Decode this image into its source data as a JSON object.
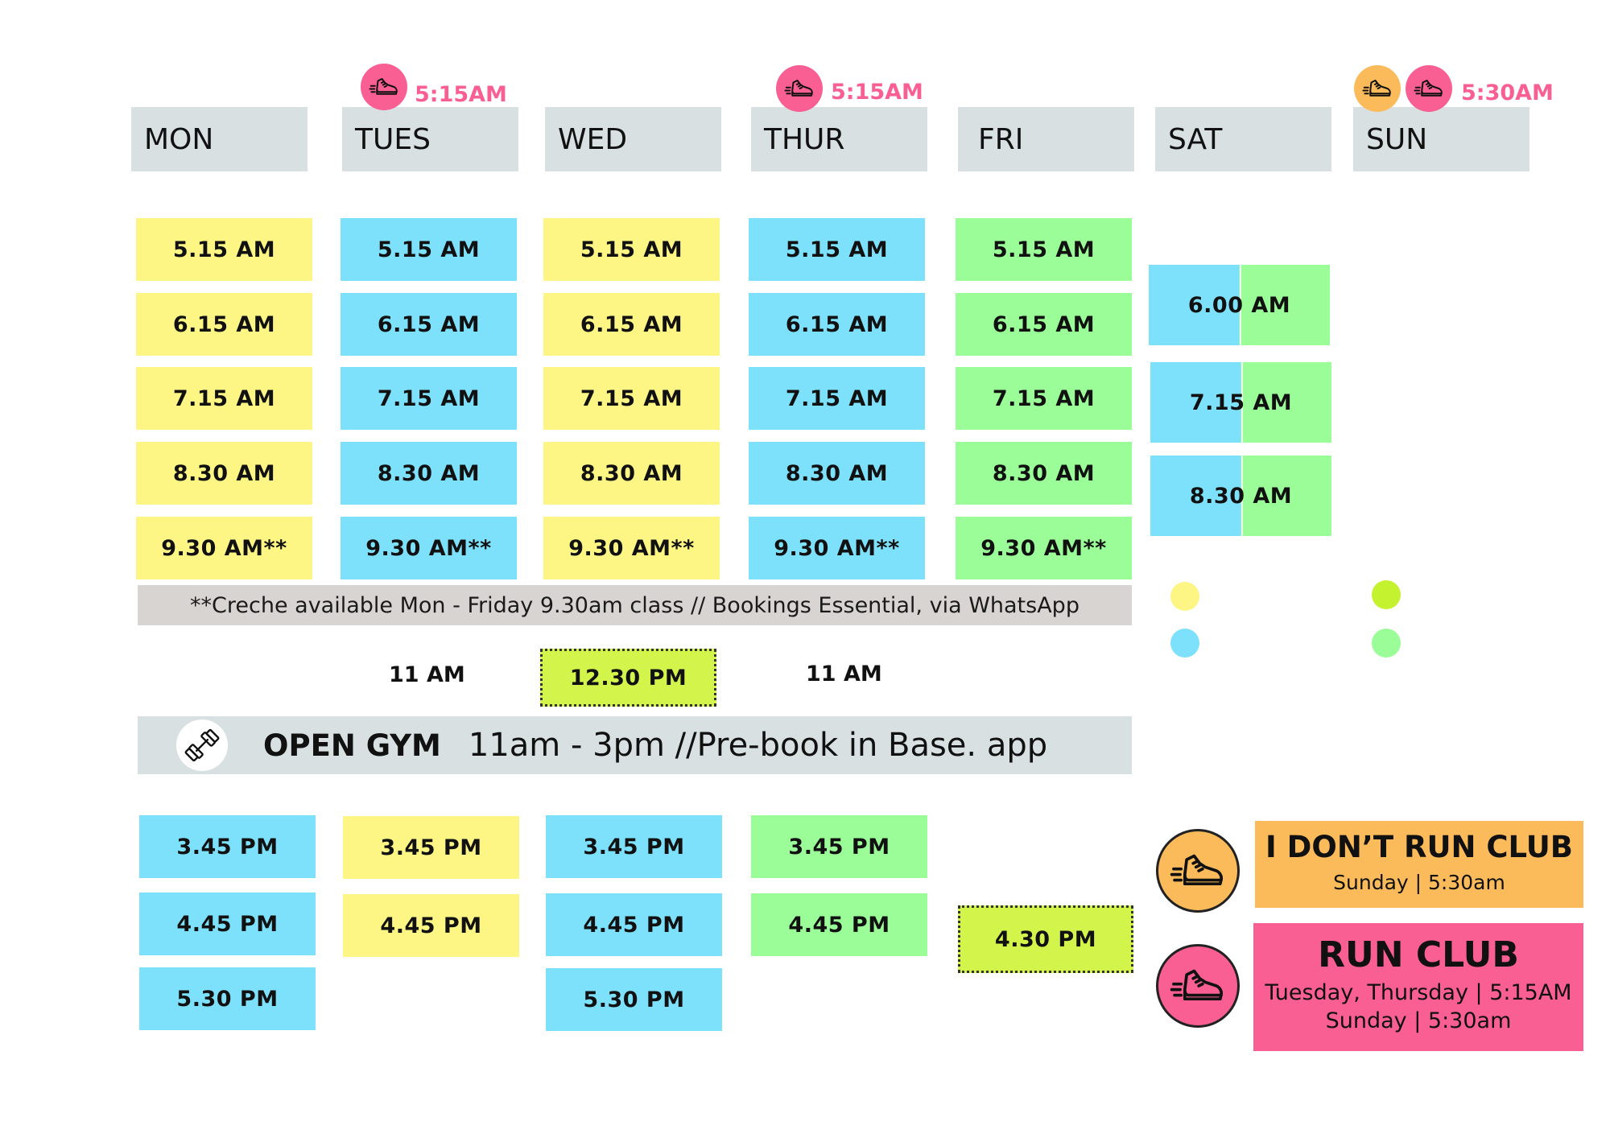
{
  "days": [
    "MON",
    "TUES",
    "WED",
    "THUR",
    "FRI",
    "SAT",
    "SUN"
  ],
  "run_badges": {
    "tues_time": "5:15AM",
    "thur_time": "5:15AM",
    "sun_time": "5:30AM"
  },
  "morning": {
    "mon": [
      "5.15 AM",
      "6.15 AM",
      "7.15 AM",
      "8.30 AM",
      "9.30 AM**"
    ],
    "tues": [
      "5.15 AM",
      "6.15 AM",
      "7.15 AM",
      "8.30 AM",
      "9.30 AM**"
    ],
    "wed": [
      "5.15 AM",
      "6.15 AM",
      "7.15 AM",
      "8.30 AM",
      "9.30 AM**"
    ],
    "thur": [
      "5.15 AM",
      "6.15 AM",
      "7.15 AM",
      "8.30 AM",
      "9.30 AM**"
    ],
    "fri": [
      "5.15 AM",
      "6.15 AM",
      "7.15 AM",
      "8.30 AM",
      "9.30 AM**"
    ],
    "sat": [
      "6.00 AM",
      "7.15 AM",
      "8.30 AM"
    ]
  },
  "creche_note": "**Creche available Mon - Friday 9.30am class // Bookings Essential, via WhatsApp",
  "midday": {
    "tues": "11 AM",
    "wed": "12.30 PM",
    "thur": "11 AM"
  },
  "open_gym": {
    "title": "OPEN GYM",
    "detail": "11am - 3pm //Pre-book in Base. app"
  },
  "afternoon": {
    "mon": [
      "3.45 PM",
      "4.45 PM",
      "5.30 PM"
    ],
    "tues": [
      "3.45 PM",
      "4.45 PM"
    ],
    "wed": [
      "3.45 PM",
      "4.45 PM",
      "5.30 PM"
    ],
    "thur": [
      "3.45 PM",
      "4.45 PM"
    ],
    "fri": "4.30 PM"
  },
  "clubs": {
    "i_dont_run": {
      "title": "I DON’T RUN CLUB",
      "detail": "Sunday | 5:30am"
    },
    "run": {
      "title": "RUN CLUB",
      "detail_1": "Tuesday, Thursday | 5:15AM",
      "detail_2": "Sunday | 5:30am"
    }
  },
  "colors": {
    "yellow": "#fdf584",
    "blue": "#7ee1fc",
    "green": "#9bfd98",
    "lime": "#d3f44b",
    "pink": "#f95f92",
    "orange": "#fcbb5a",
    "header_grey": "#d8e0e1",
    "legend_lime": "#c4f22f"
  },
  "icons": [
    "running-shoe-icon",
    "dumbbell-icon"
  ]
}
